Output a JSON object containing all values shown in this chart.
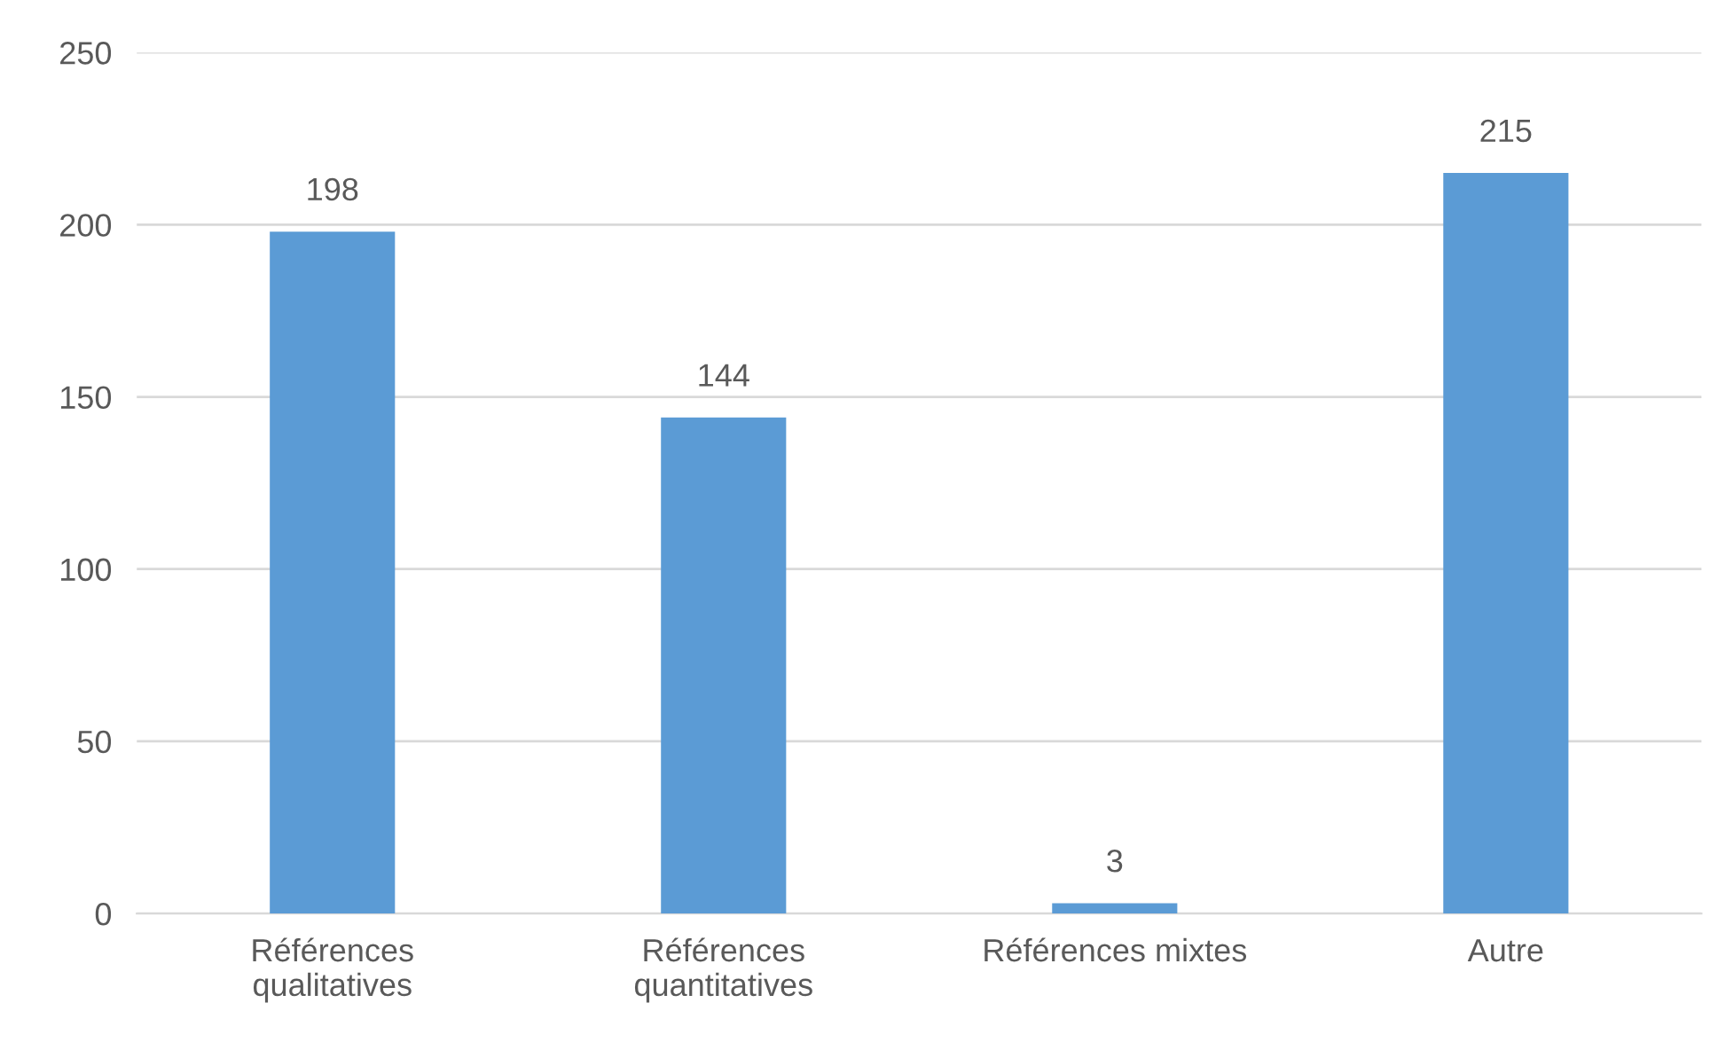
{
  "chart_data": {
    "type": "bar",
    "categories": [
      "Références\nqualitatives",
      "Références\nquantitatives",
      "Références mixtes",
      "Autre"
    ],
    "values": [
      198,
      144,
      3,
      215
    ],
    "color": "#5b9bd5",
    "ylim": [
      0,
      250
    ],
    "yticks": [
      0,
      50,
      100,
      150,
      200,
      250
    ],
    "grid": "y",
    "data_labels": true,
    "legend": false
  }
}
